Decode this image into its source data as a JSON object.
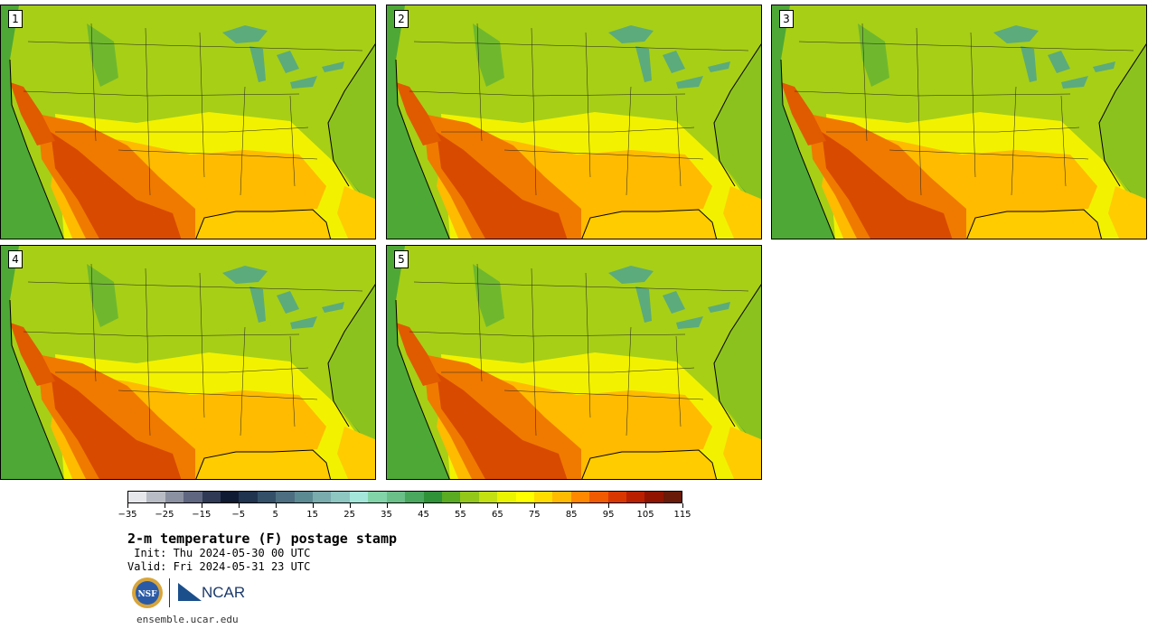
{
  "members": [
    {
      "label": "1"
    },
    {
      "label": "2"
    },
    {
      "label": "3"
    },
    {
      "label": "4"
    },
    {
      "label": "5"
    }
  ],
  "colorbar": {
    "colors": [
      "#e6e7eb",
      "#b8bcc5",
      "#8b91a1",
      "#5f6680",
      "#303a55",
      "#0f1a33",
      "#20334f",
      "#345069",
      "#4c6e80",
      "#5c8a92",
      "#7aabad",
      "#8ec6c2",
      "#a4e6da",
      "#82d4a8",
      "#6ac088",
      "#4aa85e",
      "#2f9238",
      "#5aab22",
      "#93c71a",
      "#c2e012",
      "#eaf400",
      "#ffff00",
      "#ffdd00",
      "#ffbb00",
      "#ff8800",
      "#f05a00",
      "#d83800",
      "#b82000",
      "#901400",
      "#6a1a08"
    ],
    "tick_labels": [
      "−35",
      "−25",
      "−15",
      "−5",
      "5",
      "15",
      "25",
      "35",
      "45",
      "55",
      "65",
      "75",
      "85",
      "95",
      "105",
      "115"
    ]
  },
  "title": "2-m temperature (F) postage stamp",
  "init": " Init: Thu 2024-05-30 00 UTC",
  "valid": "Valid: Fri 2024-05-31 23 UTC",
  "logos": {
    "nsf": "NSF",
    "ncar": "NCAR"
  },
  "site": "ensemble.ucar.edu"
}
